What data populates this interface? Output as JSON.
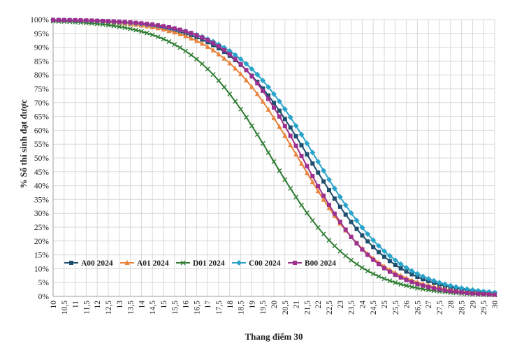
{
  "chart_data": {
    "type": "line",
    "title": "",
    "xlabel": "Thang điểm 30",
    "ylabel": "% Số thí sinh đạt được",
    "xlim": [
      10,
      30
    ],
    "ylim": [
      0,
      100
    ],
    "grid": true,
    "legend_position": "bottom-left",
    "x_tick_labels": [
      "10",
      "10,5",
      "11",
      "11,5",
      "12",
      "12,5",
      "13",
      "13,5",
      "14",
      "14,5",
      "15",
      "15,5",
      "16",
      "16,5",
      "17",
      "17,5",
      "18",
      "18,5",
      "19",
      "19,5",
      "20",
      "20,5",
      "21",
      "21,5",
      "22",
      "22,5",
      "23",
      "23,5",
      "24",
      "24,5",
      "25",
      "25,5",
      "26",
      "26,5",
      "27",
      "27,5",
      "28",
      "28,5",
      "29",
      "29,5",
      "30"
    ],
    "y_tick_labels": [
      "0%",
      "5%",
      "10%",
      "15%",
      "20%",
      "25%",
      "30%",
      "35%",
      "40%",
      "45%",
      "50%",
      "55%",
      "60%",
      "65%",
      "70%",
      "75%",
      "80%",
      "85%",
      "90%",
      "95%",
      "100%"
    ],
    "series": [
      {
        "name": "A00 2024",
        "color": "#1f4e6e",
        "marker": "square",
        "midpoint": 21.6,
        "spread": 1.9
      },
      {
        "name": "A01 2024",
        "color": "#e8843c",
        "marker": "triangle",
        "midpoint": 21.1,
        "spread": 1.85
      },
      {
        "name": "D01 2024",
        "color": "#2e7d32",
        "marker": "x",
        "midpoint": 19.9,
        "spread": 1.9
      },
      {
        "name": "C00 2024",
        "color": "#29a3c9",
        "marker": "diamond",
        "midpoint": 21.9,
        "spread": 1.9
      },
      {
        "name": "B00 2024",
        "color": "#9c2f8f",
        "marker": "square",
        "midpoint": 21.3,
        "spread": 1.7
      }
    ]
  }
}
